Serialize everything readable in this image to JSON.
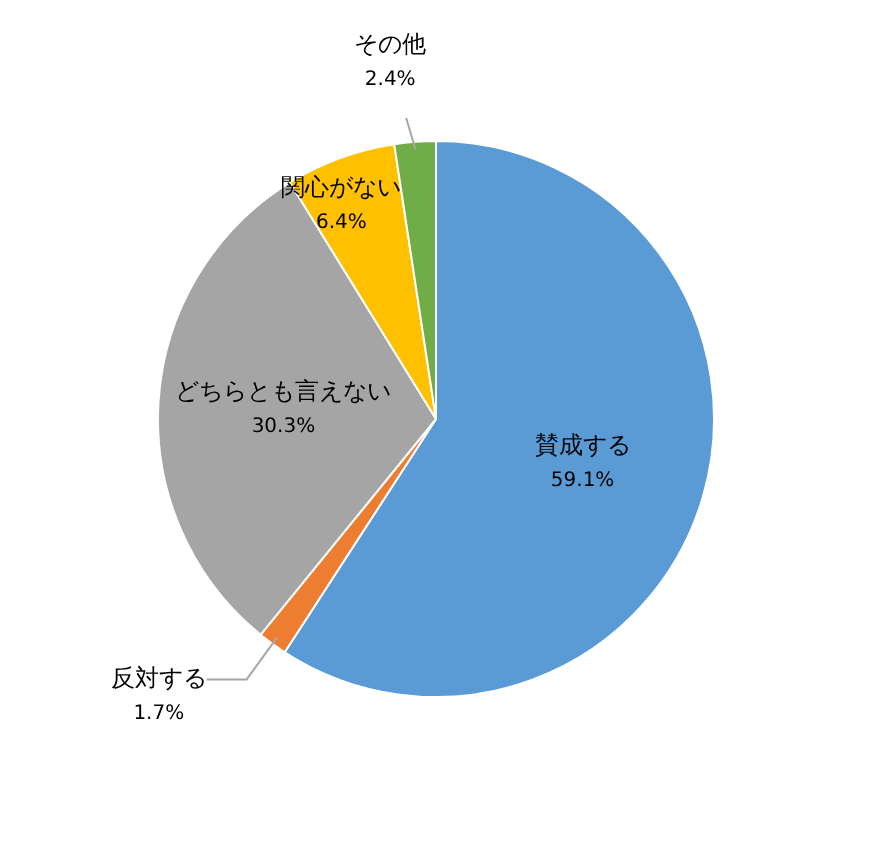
{
  "chart_data": {
    "type": "pie",
    "categories": [
      "賛成する",
      "反対する",
      "どちらとも言えない",
      "関心がない",
      "その他"
    ],
    "values": [
      59.1,
      1.7,
      30.3,
      6.4,
      2.4
    ],
    "value_labels": [
      "59.1%",
      "1.7%",
      "30.3%",
      "6.4%",
      "2.4%"
    ],
    "colors": [
      "#5b9bd5",
      "#ed7d31",
      "#a5a5a5",
      "#ffc000",
      "#70ad47"
    ]
  }
}
